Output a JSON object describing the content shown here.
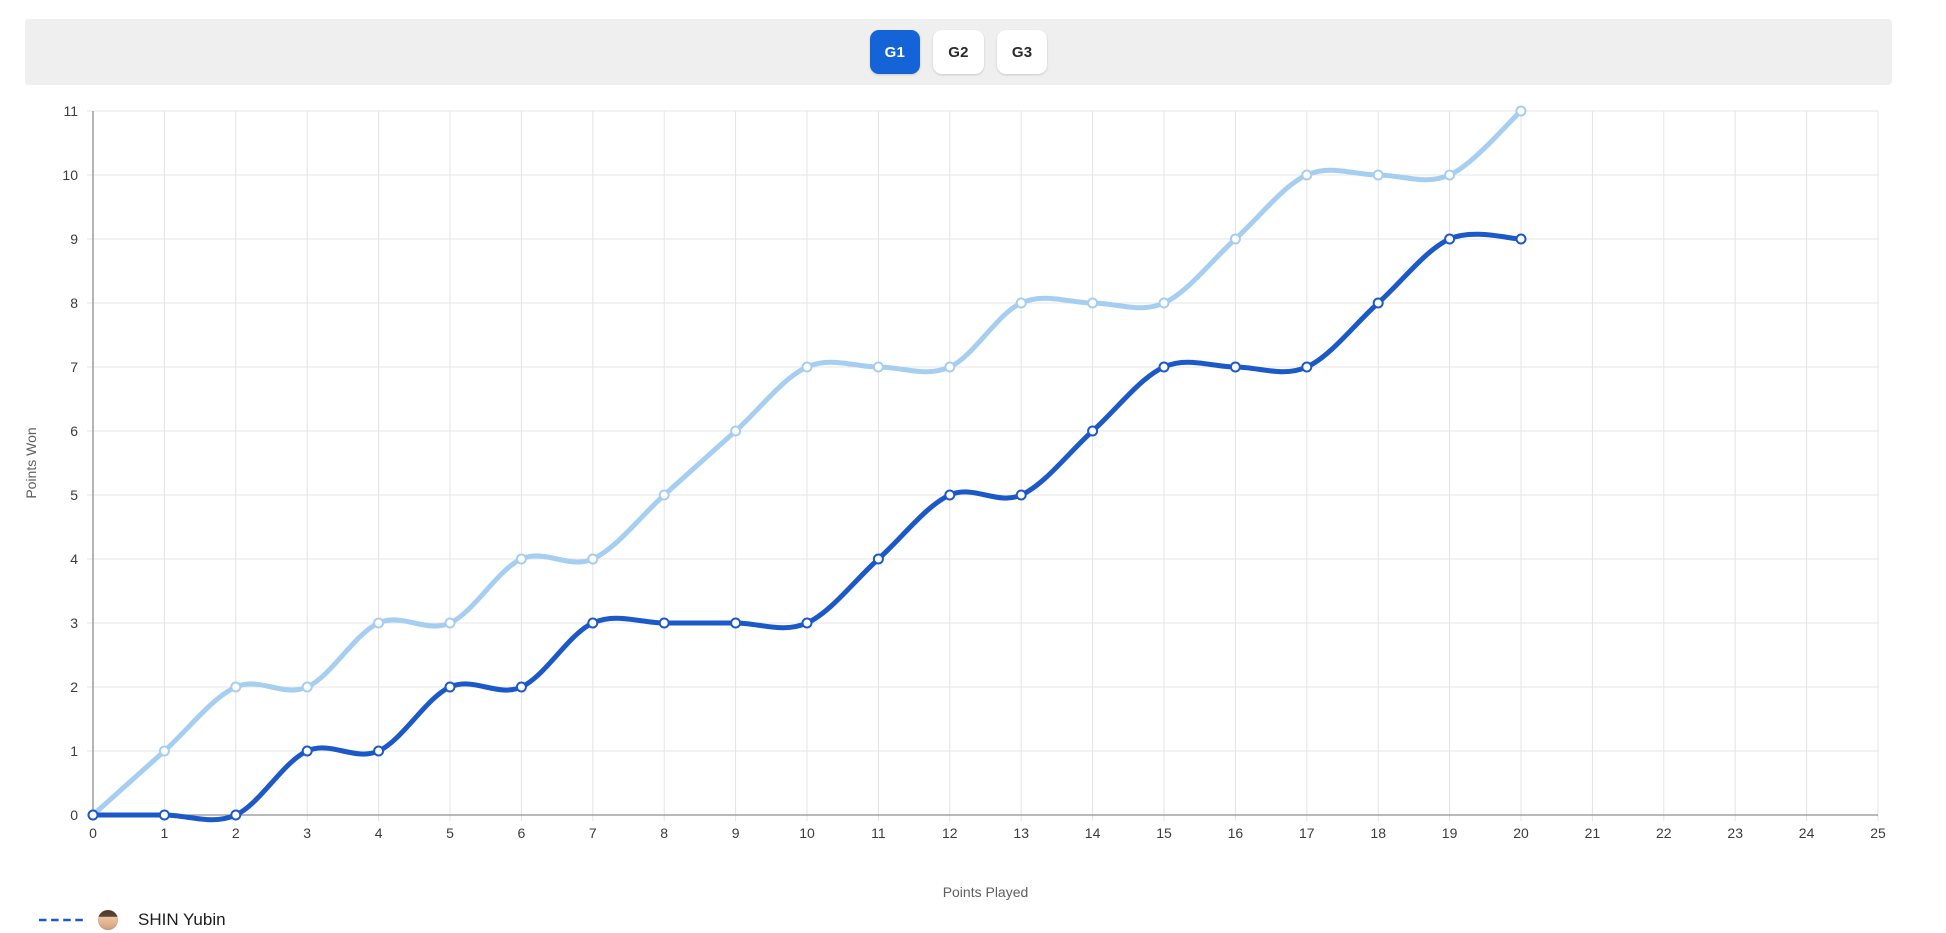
{
  "tabs": {
    "items": [
      {
        "label": "G1",
        "active": true
      },
      {
        "label": "G2",
        "active": false
      },
      {
        "label": "G3",
        "active": false
      }
    ]
  },
  "legend": {
    "items": [
      {
        "label": "SHIN Yubin",
        "swatch": "dashed-line",
        "has_avatar": true
      }
    ]
  },
  "colors": {
    "active_tab_bg": "#1464d8",
    "tab_bar_bg": "#efefef",
    "series_1": "#1c59c8",
    "series_2": "#a6cef0",
    "gridline": "#e4e4e4",
    "axis_line": "#8f8f8f",
    "tick_label": "#3c3c3c",
    "axis_title": "#5f5f5f"
  },
  "chart_data": {
    "type": "line",
    "curve": "smooth",
    "title": "",
    "xlabel": "Points Played",
    "ylabel": "Points Won",
    "xlim": [
      0,
      25
    ],
    "ylim": [
      0,
      11
    ],
    "grid": true,
    "legend_position": "bottom-left",
    "x_tick_labels": [
      0,
      1,
      2,
      3,
      4,
      5,
      6,
      7,
      8,
      9,
      10,
      11,
      12,
      13,
      14,
      15,
      16,
      17,
      18,
      19,
      20,
      21,
      22,
      23,
      24,
      25
    ],
    "y_tick_labels": [
      0,
      1,
      2,
      3,
      4,
      5,
      6,
      7,
      8,
      9,
      10,
      11
    ],
    "x": [
      0,
      1,
      2,
      3,
      4,
      5,
      6,
      7,
      8,
      9,
      10,
      11,
      12,
      13,
      14,
      15,
      16,
      17,
      18,
      19,
      20
    ],
    "series": [
      {
        "name": "SHIN Yubin",
        "color": "#1c59c8",
        "line_style": "solid",
        "marker": "open-circle",
        "values": [
          0,
          0,
          0,
          1,
          1,
          2,
          2,
          3,
          3,
          3,
          3,
          4,
          5,
          5,
          6,
          7,
          7,
          7,
          8,
          9,
          9
        ]
      },
      {
        "name": "",
        "color": "#a6cef0",
        "line_style": "solid",
        "marker": "open-circle",
        "values": [
          0,
          1,
          2,
          2,
          3,
          3,
          4,
          4,
          5,
          6,
          7,
          7,
          7,
          8,
          8,
          8,
          9,
          10,
          10,
          10,
          11
        ]
      }
    ]
  }
}
